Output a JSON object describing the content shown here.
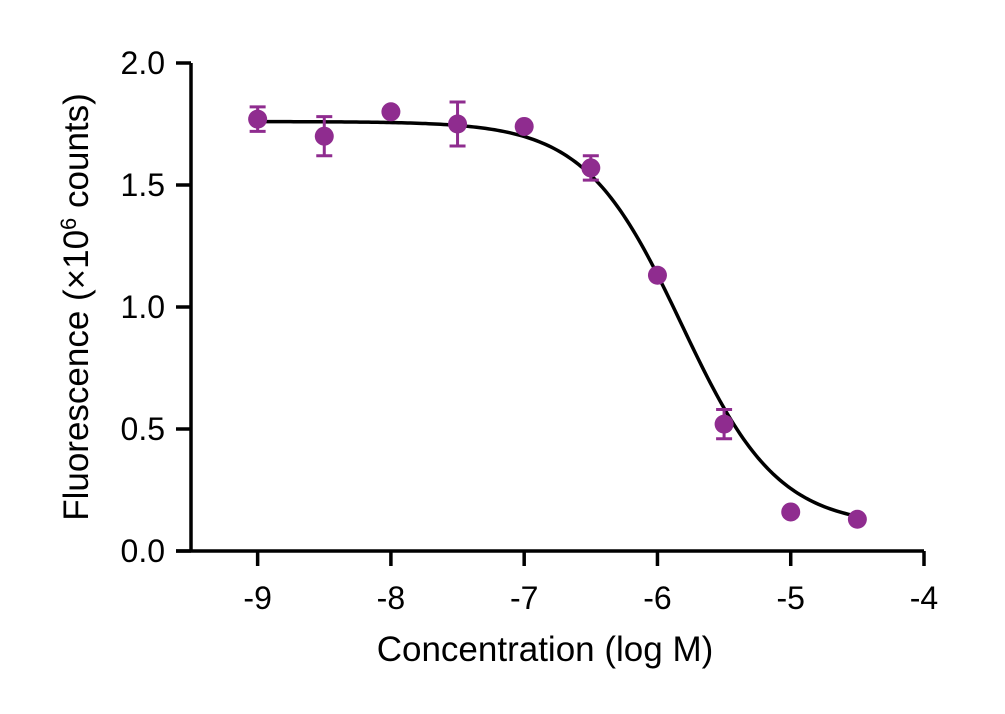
{
  "chart_data": {
    "type": "scatter",
    "title": "",
    "xlabel": "Concentration (log M)",
    "ylabel_prefix": "Fluorescence (×10",
    "ylabel_exponent": "6",
    "ylabel_suffix": " counts)",
    "xlim": [
      -9.5,
      -4
    ],
    "ylim": [
      0,
      2.0
    ],
    "x_ticks": [
      -9,
      -8,
      -7,
      -6,
      -5,
      -4
    ],
    "x_tick_labels": [
      "-9",
      "-8",
      "-7",
      "-6",
      "-5",
      "-4"
    ],
    "y_ticks": [
      0,
      0.5,
      1.0,
      1.5,
      2.0
    ],
    "y_tick_labels": [
      "0.0",
      "0.5",
      "1.0",
      "1.5",
      "2.0"
    ],
    "grid": false,
    "legend": "none",
    "marker_color": "#8f2c8f",
    "curve_color": "#000000",
    "points": [
      {
        "x": -9.0,
        "y": 1.77,
        "err": 0.05
      },
      {
        "x": -8.5,
        "y": 1.7,
        "err": 0.08
      },
      {
        "x": -8.0,
        "y": 1.8,
        "err": 0
      },
      {
        "x": -7.5,
        "y": 1.75,
        "err": 0.09
      },
      {
        "x": -7.0,
        "y": 1.74,
        "err": 0
      },
      {
        "x": -6.5,
        "y": 1.57,
        "err": 0.05
      },
      {
        "x": -6.0,
        "y": 1.13,
        "err": 0
      },
      {
        "x": -5.5,
        "y": 0.52,
        "err": 0.06
      },
      {
        "x": -5.0,
        "y": 0.16,
        "err": 0
      },
      {
        "x": -4.5,
        "y": 0.13,
        "err": 0
      }
    ],
    "fit_curve": {
      "model": "4PL",
      "top": 1.76,
      "bottom": 0.1,
      "log_ic50": -5.82,
      "hill": -1.2,
      "x_range": [
        -9,
        -4.5
      ]
    }
  }
}
